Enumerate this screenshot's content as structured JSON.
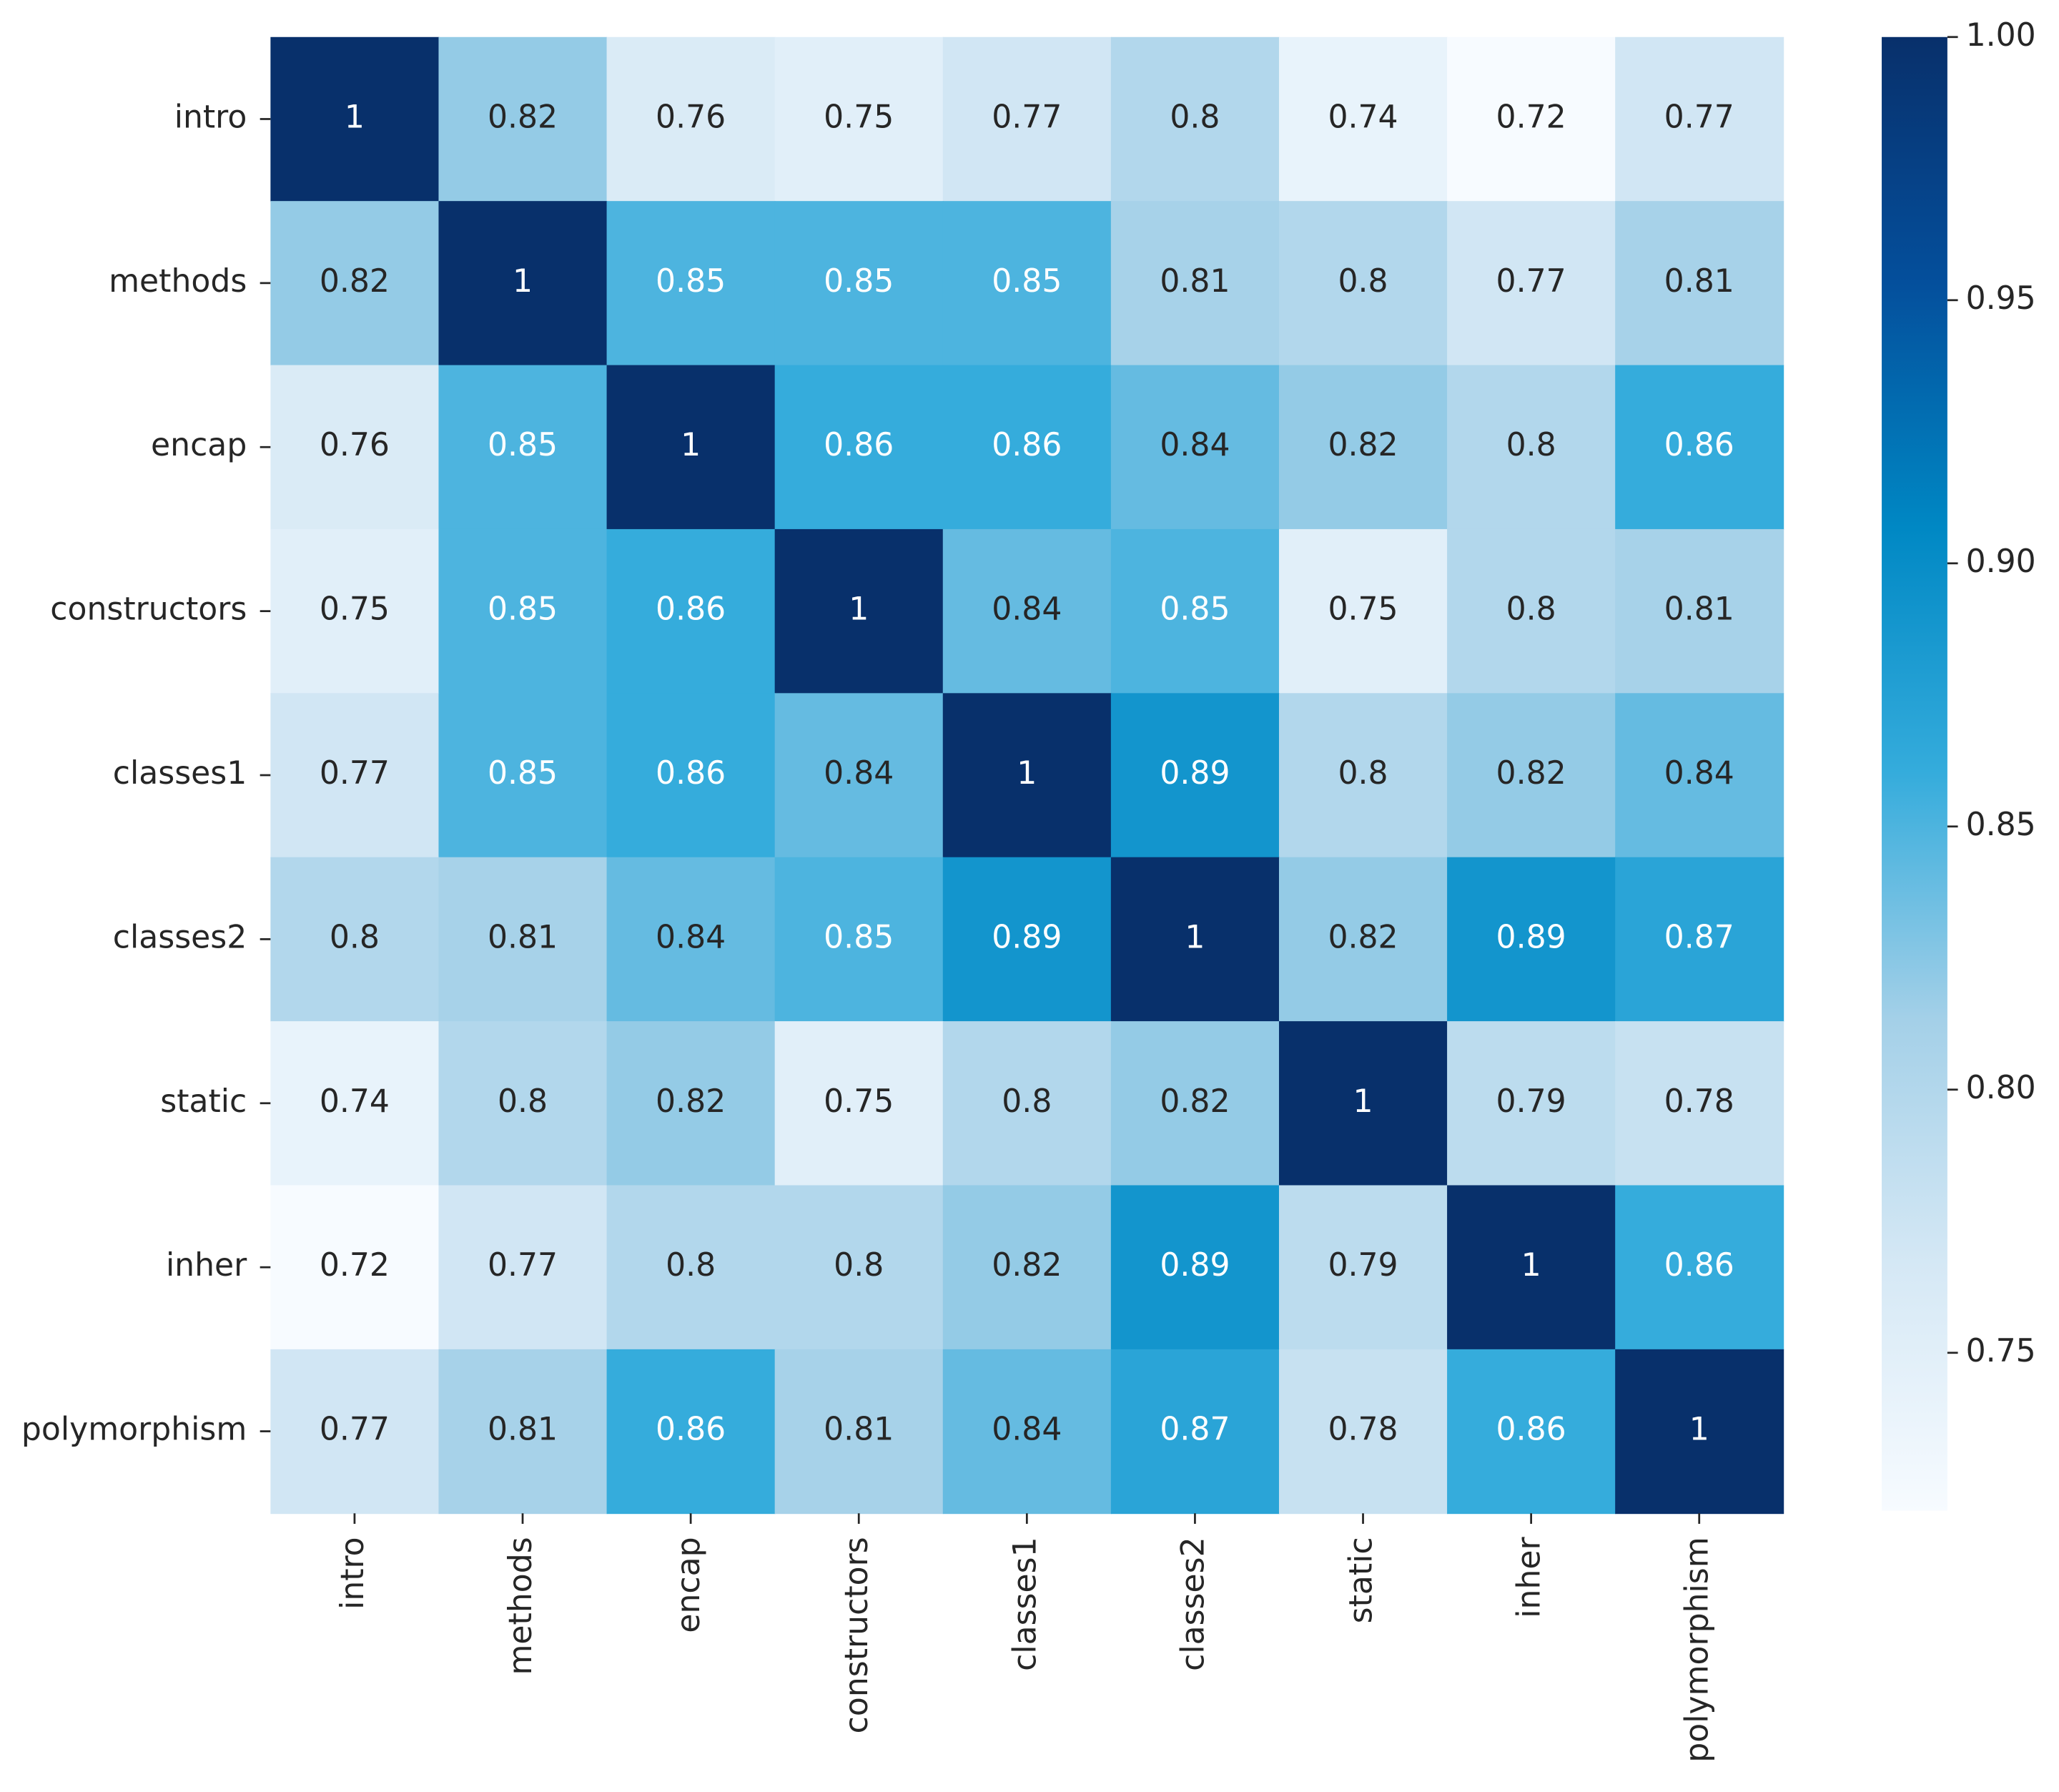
{
  "chart_data": {
    "type": "heatmap",
    "categories": [
      "intro",
      "methods",
      "encap",
      "constructors",
      "classes1",
      "classes2",
      "static",
      "inher",
      "polymorphism"
    ],
    "values": [
      [
        1,
        0.82,
        0.76,
        0.75,
        0.77,
        0.8,
        0.74,
        0.72,
        0.77
      ],
      [
        0.82,
        1,
        0.85,
        0.85,
        0.85,
        0.81,
        0.8,
        0.77,
        0.81
      ],
      [
        0.76,
        0.85,
        1,
        0.86,
        0.86,
        0.84,
        0.82,
        0.8,
        0.86
      ],
      [
        0.75,
        0.85,
        0.86,
        1,
        0.84,
        0.85,
        0.75,
        0.8,
        0.81
      ],
      [
        0.77,
        0.85,
        0.86,
        0.84,
        1,
        0.89,
        0.8,
        0.82,
        0.84
      ],
      [
        0.8,
        0.81,
        0.84,
        0.85,
        0.89,
        1,
        0.82,
        0.89,
        0.87
      ],
      [
        0.74,
        0.8,
        0.82,
        0.75,
        0.8,
        0.82,
        1,
        0.79,
        0.78
      ],
      [
        0.72,
        0.77,
        0.8,
        0.8,
        0.82,
        0.89,
        0.79,
        1,
        0.86
      ],
      [
        0.77,
        0.81,
        0.86,
        0.81,
        0.84,
        0.87,
        0.78,
        0.86,
        1
      ]
    ],
    "clim": [
      0.72,
      1.0
    ],
    "cticks": [
      {
        "value": 0.75,
        "label": "0.75"
      },
      {
        "value": 0.8,
        "label": "0.80"
      },
      {
        "value": 0.85,
        "label": "0.85"
      },
      {
        "value": 0.9,
        "label": "0.90"
      },
      {
        "value": 0.95,
        "label": "0.95"
      },
      {
        "value": 1.0,
        "label": "1.00"
      }
    ],
    "colormap": [
      "#f7fbff",
      "#d5e8f5",
      "#a4d0e8",
      "#35acdc",
      "#0088c4",
      "#044f9c",
      "#08306b"
    ]
  }
}
